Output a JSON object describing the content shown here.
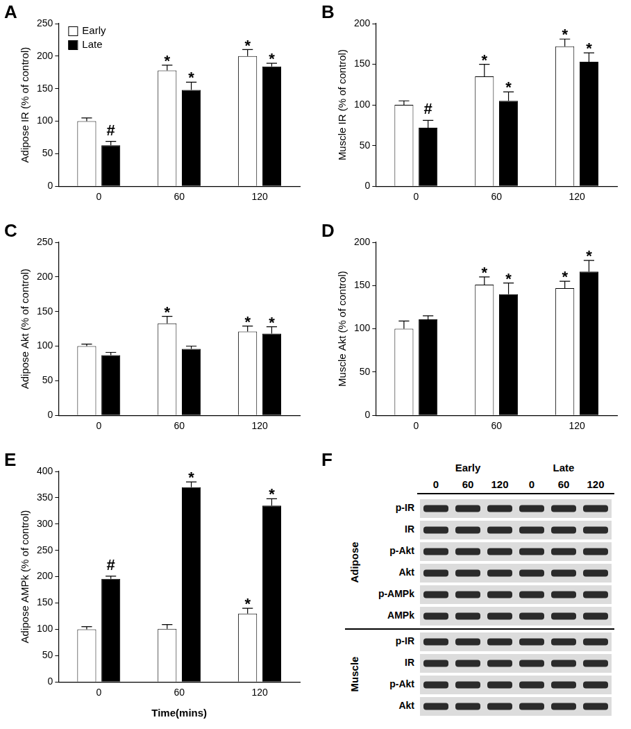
{
  "chart_data": [
    {
      "type": "bar",
      "panel_label": "A",
      "y_label": "Adipose IR (% of control)",
      "categories": [
        "0",
        "60",
        "120"
      ],
      "series": [
        {
          "name": "Early",
          "color": "#ffffff",
          "values": [
            100,
            178,
            200
          ],
          "error": [
            5,
            8,
            10
          ],
          "significance": [
            null,
            "*",
            "*"
          ]
        },
        {
          "name": "Late",
          "color": "#000000",
          "values": [
            63,
            148,
            184
          ],
          "error": [
            6,
            12,
            5
          ],
          "significance": [
            "#",
            "*",
            "*"
          ]
        }
      ],
      "ylim": [
        0,
        250
      ],
      "yticks": [
        0,
        50,
        100,
        150,
        200,
        250
      ],
      "grid": false,
      "legend": "upper left"
    },
    {
      "type": "bar",
      "panel_label": "B",
      "y_label": "Muscle IR (% of control)",
      "categories": [
        "0",
        "60",
        "120"
      ],
      "series": [
        {
          "color": "#ffffff",
          "values": [
            100,
            135,
            172
          ],
          "error": [
            5,
            15,
            9
          ],
          "significance": [
            null,
            "*",
            "*"
          ]
        },
        {
          "color": "#000000",
          "values": [
            72,
            105,
            153
          ],
          "error": [
            9,
            11,
            11
          ],
          "significance": [
            "#",
            "*",
            "*"
          ]
        }
      ],
      "ylim": [
        0,
        200
      ],
      "yticks": [
        0,
        50,
        100,
        150,
        200
      ],
      "grid": false
    },
    {
      "type": "bar",
      "panel_label": "C",
      "y_label": "Adipose Akt (% of control)",
      "categories": [
        "0",
        "60",
        "120"
      ],
      "series": [
        {
          "color": "#ffffff",
          "values": [
            100,
            133,
            121
          ],
          "error": [
            3,
            10,
            8
          ],
          "significance": [
            null,
            "*",
            "*"
          ]
        },
        {
          "color": "#000000",
          "values": [
            87,
            96,
            118
          ],
          "error": [
            4,
            4,
            10
          ],
          "significance": [
            null,
            null,
            "*"
          ]
        }
      ],
      "ylim": [
        0,
        250
      ],
      "yticks": [
        0,
        50,
        100,
        150,
        200,
        250
      ],
      "grid": false
    },
    {
      "type": "bar",
      "panel_label": "D",
      "y_label": "Muscle Akt (% of control)",
      "categories": [
        "0",
        "60",
        "120"
      ],
      "series": [
        {
          "color": "#ffffff",
          "values": [
            100,
            151,
            147
          ],
          "error": [
            9,
            9,
            8
          ],
          "significance": [
            null,
            "*",
            "*"
          ]
        },
        {
          "color": "#000000",
          "values": [
            111,
            140,
            166
          ],
          "error": [
            4,
            13,
            13
          ],
          "significance": [
            null,
            "*",
            "*"
          ]
        }
      ],
      "ylim": [
        0,
        200
      ],
      "yticks": [
        0,
        50,
        100,
        150,
        200
      ],
      "grid": false
    },
    {
      "type": "bar",
      "panel_label": "E",
      "y_label": "Adipose AMPk (% of control)",
      "x_label": "Time(mins)",
      "categories": [
        "0",
        "60",
        "120"
      ],
      "series": [
        {
          "color": "#ffffff",
          "values": [
            100,
            101,
            130
          ],
          "error": [
            5,
            8,
            10
          ],
          "significance": [
            null,
            null,
            "*"
          ]
        },
        {
          "color": "#000000",
          "values": [
            196,
            370,
            335
          ],
          "error": [
            5,
            10,
            13
          ],
          "significance": [
            "#",
            "*",
            "*"
          ]
        }
      ],
      "ylim": [
        0,
        400
      ],
      "yticks": [
        0,
        50,
        100,
        150,
        200,
        250,
        300,
        350,
        400
      ],
      "grid": false
    }
  ],
  "blot": {
    "panel_label": "F",
    "groups": [
      "Early",
      "Late"
    ],
    "lanes": [
      "0",
      "60",
      "120",
      "0",
      "60",
      "120"
    ],
    "sections": [
      {
        "label": "Adipose",
        "rows": [
          "p-IR",
          "IR",
          "p-Akt",
          "Akt",
          "p-AMPk",
          "AMPk"
        ]
      },
      {
        "label": "Muscle",
        "rows": [
          "p-IR",
          "IR",
          "p-Akt",
          "Akt"
        ]
      }
    ]
  }
}
